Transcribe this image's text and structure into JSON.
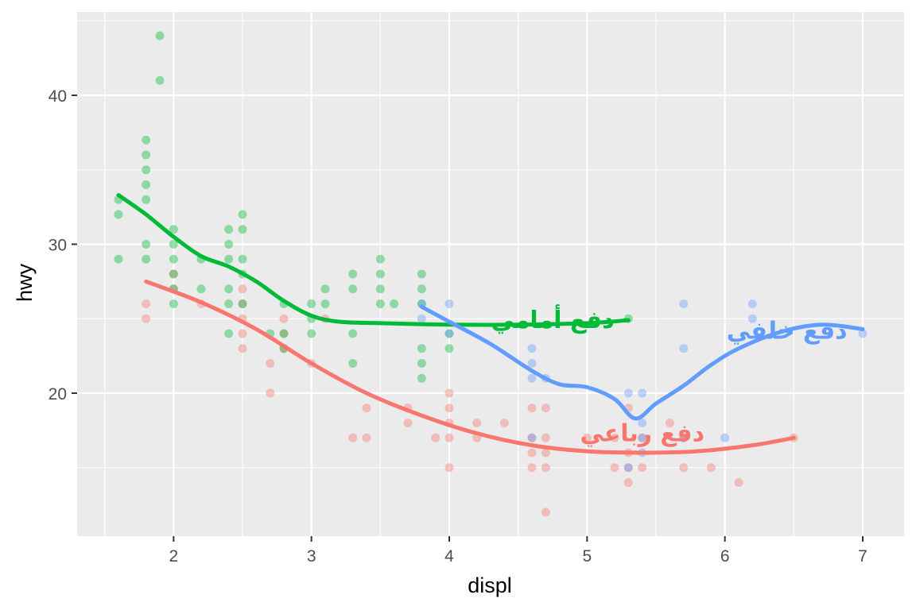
{
  "chart_data": {
    "type": "scatter",
    "xlabel": "displ",
    "ylabel": "hwy",
    "xlim": [
      1.3,
      7.3
    ],
    "ylim": [
      10.4,
      45.6
    ],
    "x_ticks": [
      2,
      3,
      4,
      5,
      6,
      7
    ],
    "y_ticks": [
      20,
      30,
      40
    ],
    "grid": true,
    "background": "#ebebeb",
    "series": [
      {
        "name": "دفع رباعي",
        "color": "#f8766d",
        "label_position": [
          5.4,
          17.3
        ],
        "points": [
          [
            1.8,
            26
          ],
          [
            1.8,
            25
          ],
          [
            2.0,
            28
          ],
          [
            2.0,
            27
          ],
          [
            2.2,
            26
          ],
          [
            2.5,
            26
          ],
          [
            2.5,
            27
          ],
          [
            2.5,
            25
          ],
          [
            2.5,
            24
          ],
          [
            2.5,
            23
          ],
          [
            2.7,
            22
          ],
          [
            2.7,
            20
          ],
          [
            2.8,
            25
          ],
          [
            2.8,
            24
          ],
          [
            2.8,
            23
          ],
          [
            3.0,
            22
          ],
          [
            3.1,
            25
          ],
          [
            3.3,
            17
          ],
          [
            3.4,
            19
          ],
          [
            3.4,
            17
          ],
          [
            3.7,
            19
          ],
          [
            3.7,
            18
          ],
          [
            3.9,
            17
          ],
          [
            4.0,
            20
          ],
          [
            4.0,
            19
          ],
          [
            4.0,
            18
          ],
          [
            4.0,
            17
          ],
          [
            4.0,
            15
          ],
          [
            4.2,
            18
          ],
          [
            4.2,
            17
          ],
          [
            4.4,
            18
          ],
          [
            4.6,
            19
          ],
          [
            4.6,
            17
          ],
          [
            4.6,
            16
          ],
          [
            4.6,
            15
          ],
          [
            4.7,
            19
          ],
          [
            4.7,
            17
          ],
          [
            4.7,
            16
          ],
          [
            4.7,
            15
          ],
          [
            4.7,
            12
          ],
          [
            5.0,
            17
          ],
          [
            5.2,
            17
          ],
          [
            5.2,
            15
          ],
          [
            5.3,
            19
          ],
          [
            5.3,
            16
          ],
          [
            5.3,
            15
          ],
          [
            5.3,
            14
          ],
          [
            5.4,
            17
          ],
          [
            5.4,
            15
          ],
          [
            5.6,
            18
          ],
          [
            5.7,
            17
          ],
          [
            5.7,
            15
          ],
          [
            5.9,
            15
          ],
          [
            6.1,
            14
          ],
          [
            6.5,
            17
          ]
        ],
        "smooth": [
          [
            1.8,
            27.5
          ],
          [
            2.2,
            26.1
          ],
          [
            2.6,
            24.3
          ],
          [
            3.0,
            22.0
          ],
          [
            3.4,
            20.0
          ],
          [
            3.8,
            18.5
          ],
          [
            4.2,
            17.3
          ],
          [
            4.6,
            16.5
          ],
          [
            5.0,
            16.1
          ],
          [
            5.4,
            16.0
          ],
          [
            5.8,
            16.1
          ],
          [
            6.2,
            16.5
          ],
          [
            6.5,
            17.0
          ]
        ]
      },
      {
        "name": "دفع أمامي",
        "color": "#00ba38",
        "label_position": [
          4.75,
          24.9
        ],
        "points": [
          [
            1.6,
            33
          ],
          [
            1.6,
            32
          ],
          [
            1.6,
            29
          ],
          [
            1.8,
            37
          ],
          [
            1.8,
            36
          ],
          [
            1.8,
            35
          ],
          [
            1.8,
            34
          ],
          [
            1.8,
            33
          ],
          [
            1.8,
            30
          ],
          [
            1.8,
            29
          ],
          [
            1.9,
            44
          ],
          [
            1.9,
            41
          ],
          [
            2.0,
            31
          ],
          [
            2.0,
            30
          ],
          [
            2.0,
            29
          ],
          [
            2.0,
            28
          ],
          [
            2.0,
            27
          ],
          [
            2.0,
            26
          ],
          [
            2.2,
            29
          ],
          [
            2.2,
            27
          ],
          [
            2.4,
            31
          ],
          [
            2.4,
            30
          ],
          [
            2.4,
            29
          ],
          [
            2.4,
            27
          ],
          [
            2.4,
            26
          ],
          [
            2.4,
            24
          ],
          [
            2.5,
            32
          ],
          [
            2.5,
            31
          ],
          [
            2.5,
            29
          ],
          [
            2.5,
            28
          ],
          [
            2.5,
            26
          ],
          [
            2.7,
            24
          ],
          [
            2.8,
            26
          ],
          [
            2.8,
            24
          ],
          [
            2.8,
            23
          ],
          [
            3.0,
            26
          ],
          [
            3.0,
            25
          ],
          [
            3.0,
            24
          ],
          [
            3.1,
            27
          ],
          [
            3.1,
            26
          ],
          [
            3.3,
            28
          ],
          [
            3.3,
            27
          ],
          [
            3.3,
            24
          ],
          [
            3.3,
            22
          ],
          [
            3.5,
            29
          ],
          [
            3.5,
            28
          ],
          [
            3.5,
            27
          ],
          [
            3.5,
            26
          ],
          [
            3.6,
            26
          ],
          [
            3.8,
            28
          ],
          [
            3.8,
            27
          ],
          [
            3.8,
            26
          ],
          [
            3.8,
            23
          ],
          [
            3.8,
            22
          ],
          [
            3.8,
            21
          ],
          [
            4.0,
            24
          ],
          [
            4.0,
            23
          ],
          [
            5.3,
            25
          ]
        ],
        "smooth": [
          [
            1.6,
            33.3
          ],
          [
            1.8,
            32.0
          ],
          [
            2.0,
            30.5
          ],
          [
            2.2,
            29.2
          ],
          [
            2.4,
            28.5
          ],
          [
            2.6,
            27.5
          ],
          [
            2.8,
            26.2
          ],
          [
            3.0,
            25.2
          ],
          [
            3.2,
            24.8
          ],
          [
            3.5,
            24.7
          ],
          [
            4.0,
            24.6
          ],
          [
            4.5,
            24.6
          ],
          [
            5.0,
            24.7
          ],
          [
            5.3,
            24.9
          ]
        ]
      },
      {
        "name": "دفع خلفي",
        "color": "#619cff",
        "label_position": [
          6.45,
          24.2
        ],
        "points": [
          [
            3.8,
            26
          ],
          [
            3.8,
            25
          ],
          [
            4.0,
            26
          ],
          [
            4.0,
            24
          ],
          [
            4.6,
            23
          ],
          [
            4.6,
            22
          ],
          [
            4.6,
            21
          ],
          [
            4.6,
            17
          ],
          [
            4.7,
            21
          ],
          [
            5.3,
            20
          ],
          [
            5.3,
            15
          ],
          [
            5.4,
            20
          ],
          [
            5.4,
            18
          ],
          [
            5.4,
            17
          ],
          [
            5.4,
            16
          ],
          [
            5.7,
            26
          ],
          [
            5.7,
            23
          ],
          [
            5.7,
            17
          ],
          [
            6.0,
            17
          ],
          [
            6.2,
            26
          ],
          [
            6.2,
            25
          ],
          [
            7.0,
            24
          ]
        ],
        "smooth": [
          [
            3.8,
            25.8
          ],
          [
            4.0,
            24.8
          ],
          [
            4.3,
            23.3
          ],
          [
            4.6,
            21.5
          ],
          [
            4.8,
            20.6
          ],
          [
            5.0,
            20.4
          ],
          [
            5.2,
            19.6
          ],
          [
            5.35,
            18.3
          ],
          [
            5.5,
            19.3
          ],
          [
            5.7,
            20.5
          ],
          [
            5.9,
            21.9
          ],
          [
            6.1,
            23.0
          ],
          [
            6.4,
            24.1
          ],
          [
            6.7,
            24.6
          ],
          [
            7.0,
            24.3
          ]
        ]
      }
    ]
  }
}
